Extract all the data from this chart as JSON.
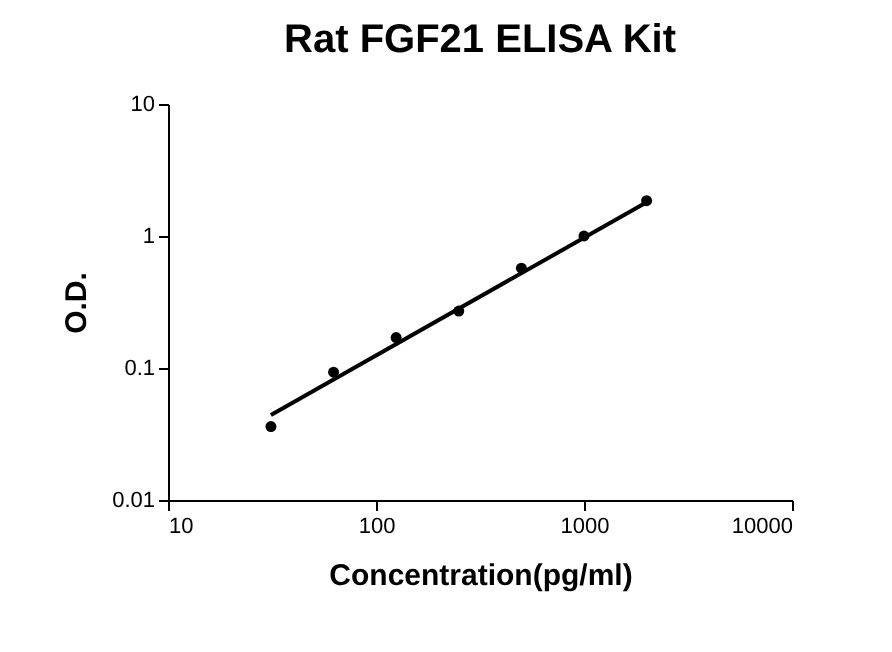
{
  "chart_data": {
    "type": "scatter",
    "title": "Rat FGF21 ELISA Kit",
    "xlabel": "Concentration(pg/ml)",
    "ylabel": "O.D.",
    "log": "xy",
    "xlim": [
      10,
      10000
    ],
    "xticks": [
      10,
      100,
      1000,
      10000
    ],
    "ylim": [
      0.01,
      10
    ],
    "yticks": [
      0.01,
      0.1,
      1,
      10
    ],
    "grid": false,
    "series": [
      {
        "marker": "circle",
        "color": "#000000",
        "x": [
          31.25,
          62.5,
          125,
          250,
          500,
          1000,
          2000
        ],
        "values": [
          0.036,
          0.093,
          0.17,
          0.27,
          0.57,
          1.0,
          1.85
        ]
      },
      {
        "type": "line",
        "color": "#000000",
        "x": [
          31.25,
          2000
        ],
        "values": [
          0.044,
          1.8
        ]
      }
    ]
  }
}
